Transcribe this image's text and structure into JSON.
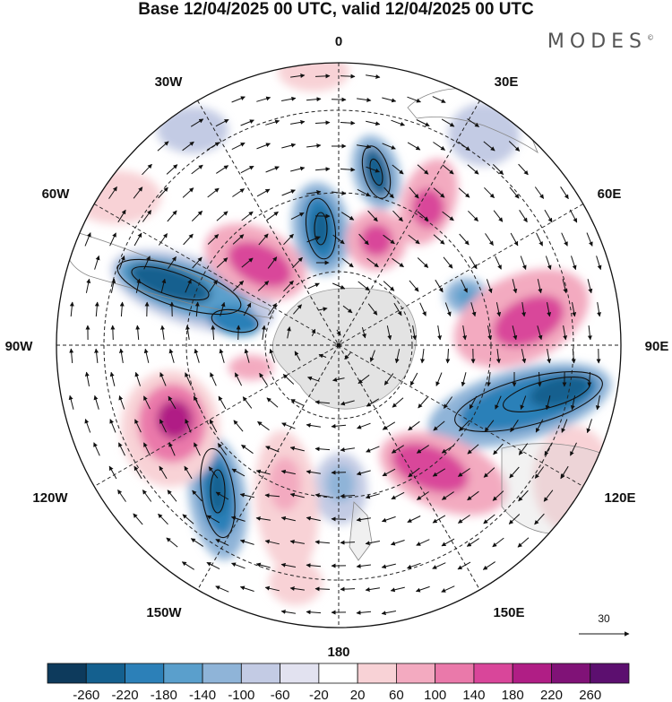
{
  "header": {
    "title": "Base 12/04/2025 00 UTC, valid 12/04/2025 00 UTC",
    "brand": "MODES",
    "brand_mark": "©"
  },
  "map": {
    "projection": "south-polar-stereographic",
    "longitude_labels": {
      "top": "0",
      "top_right": "30E",
      "right_upper": "60E",
      "right": "90E",
      "right_lower": "120E",
      "bottom_right": "150E",
      "bottom": "180",
      "bottom_left": "150W",
      "left_lower": "120W",
      "left": "90W",
      "left_upper": "60W",
      "top_left": "30W"
    },
    "reference_vector": "30"
  },
  "colorbar": {
    "labels": [
      "-260",
      "-220",
      "-180",
      "-140",
      "-100",
      "-60",
      "-20",
      "20",
      "60",
      "100",
      "140",
      "180",
      "220",
      "260"
    ],
    "colors": [
      "#0d3a5c",
      "#14608f",
      "#2c80b8",
      "#5a9fcc",
      "#8fb4d8",
      "#c3cbe4",
      "#e2e2f0",
      "#ffffff",
      "#f8d2d6",
      "#f3aac0",
      "#ea79aa",
      "#d9469a",
      "#b01e85",
      "#801277",
      "#5c0f6f"
    ]
  },
  "colors": {
    "neg_strong": "#14608f",
    "neg_mid": "#5a9fcc",
    "neg_weak": "#c3cbe4",
    "pos_weak": "#f8d2d6",
    "pos_mid": "#ea79aa",
    "pos_strong": "#b01e85"
  }
}
